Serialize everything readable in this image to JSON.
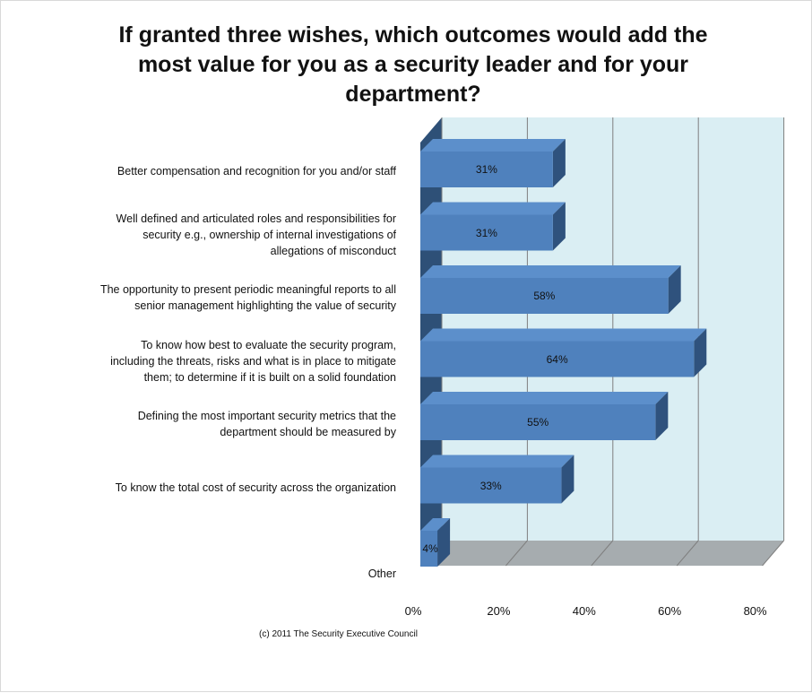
{
  "chart_data": {
    "type": "bar",
    "orientation": "horizontal",
    "style": "3d-clustered-bar",
    "title_lines": [
      "If granted three wishes, which outcomes would add the",
      "most value for you as a security leader and for your",
      "department?"
    ],
    "categories": [
      [
        "Better compensation and recognition for you and/or staff"
      ],
      [
        "Well defined and articulated roles and responsibilities for",
        "security e.g., ownership of internal investigations  of",
        "allegations of misconduct"
      ],
      [
        "The opportunity to present periodic meaningful reports to all",
        "senior management  highlighting the value of security"
      ],
      [
        "To know how best to evaluate the security program,",
        "including the threats, risks and what is in place to mitigate",
        "them; to determine if it is built on a solid foundation"
      ],
      [
        "Defining the most  important security metrics that the",
        "department should be measured by"
      ],
      [
        "To know the total  cost of security across the organization"
      ],
      [
        "Other"
      ]
    ],
    "values": [
      31,
      31,
      58,
      64,
      55,
      33,
      4
    ],
    "value_labels": [
      "31%",
      "31%",
      "58%",
      "64%",
      "55%",
      "33%",
      "4%"
    ],
    "xlim": [
      0,
      80
    ],
    "x_tick_labels": [
      "0%",
      "20%",
      "40%",
      "60%",
      "80%"
    ],
    "grid": true,
    "legend": "none",
    "source_note": "(c) 2011 The Security Executive Council",
    "colors": {
      "bar_front": "#4f81bd",
      "bar_top": "#5c8fcb",
      "bar_side": "#2f527d",
      "back_wall": "#daeef3",
      "side_wall": "#2e5077",
      "floor": "#a6acaf",
      "gridline": "#7f7f7f"
    }
  }
}
